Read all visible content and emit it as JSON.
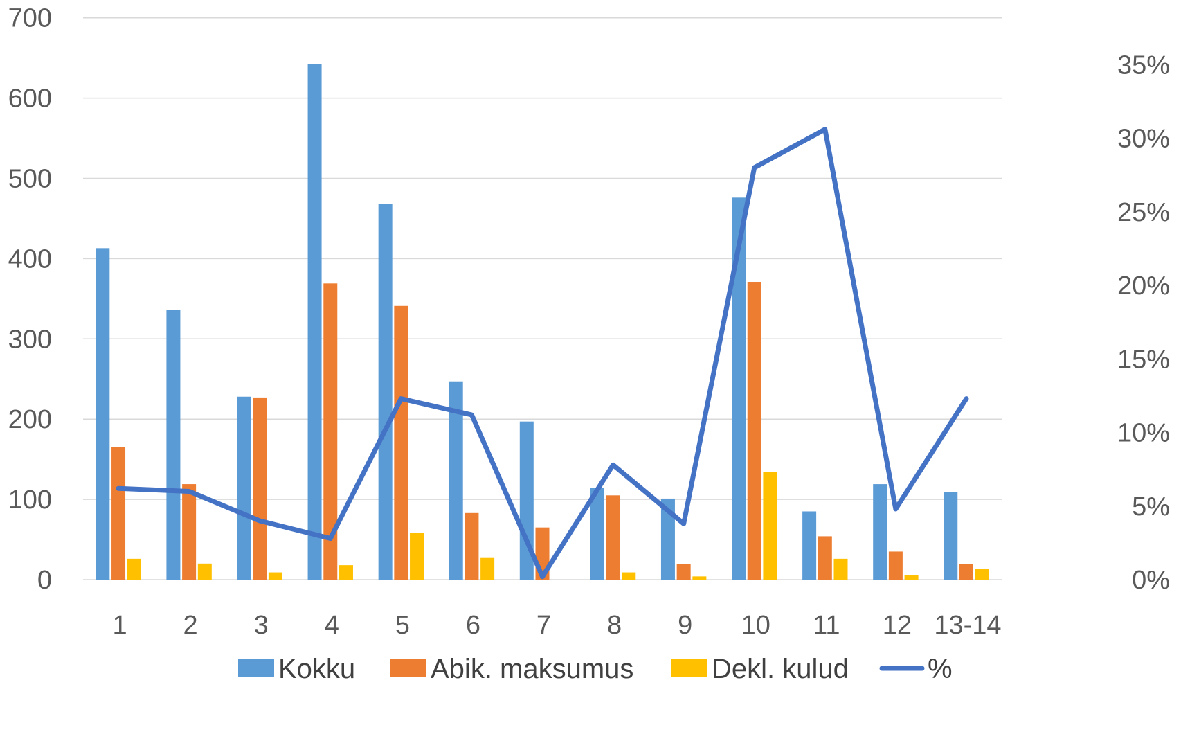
{
  "chart_data": {
    "type": "bar",
    "categories": [
      "1",
      "2",
      "3",
      "4",
      "5",
      "6",
      "7",
      "8",
      "9",
      "10",
      "11",
      "12",
      "13-14"
    ],
    "series": [
      {
        "name": "Kokku",
        "kind": "bar",
        "axis": "left",
        "color": "#5b9bd5",
        "values": [
          413,
          336,
          228,
          642,
          468,
          247,
          197,
          114,
          101,
          476,
          85,
          119,
          109
        ]
      },
      {
        "name": "Abik. maksumus",
        "kind": "bar",
        "axis": "left",
        "color": "#ed7d31",
        "values": [
          165,
          119,
          227,
          369,
          341,
          83,
          65,
          105,
          19,
          371,
          54,
          35,
          19
        ]
      },
      {
        "name": "Dekl. kulud",
        "kind": "bar",
        "axis": "left",
        "color": "#ffc000",
        "values": [
          26,
          20,
          9,
          18,
          58,
          27,
          0,
          9,
          4,
          134,
          26,
          6,
          13
        ]
      },
      {
        "name": "%",
        "kind": "line",
        "axis": "right",
        "color": "#4472c4",
        "values": [
          6.2,
          6.0,
          4.0,
          2.8,
          12.3,
          11.2,
          0.2,
          7.8,
          3.8,
          28.0,
          30.6,
          4.8,
          12.3
        ]
      }
    ],
    "y_left": {
      "range": [
        0,
        700
      ],
      "ticks": [
        "0",
        "100",
        "200",
        "300",
        "400",
        "500",
        "600",
        "700"
      ]
    },
    "y_right": {
      "range": [
        0,
        38
      ],
      "ticks": [
        "0%",
        "5%",
        "10%",
        "15%",
        "20%",
        "25%",
        "30%",
        "35%"
      ]
    },
    "grid": true,
    "legend": "bottom",
    "title": "",
    "xlabel": "",
    "ylabel": ""
  }
}
